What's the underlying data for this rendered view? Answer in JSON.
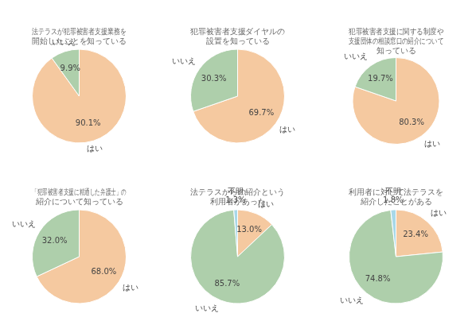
{
  "chart_data": [
    {
      "type": "pie",
      "title": "法テラスが犯罪被害者支援業務を\n開始したことを知っている",
      "categories": [
        "はい",
        "いいえ"
      ],
      "values": [
        90.1,
        9.9
      ],
      "value_labels": [
        "90.1%",
        "9.9%"
      ],
      "colors": [
        "#f5c9a0",
        "#aecfab"
      ],
      "data_labels": true
    },
    {
      "type": "pie",
      "title": "犯罪被害者支援ダイヤルの\n設置を知っている",
      "categories": [
        "はい",
        "いいえ"
      ],
      "values": [
        69.7,
        30.3
      ],
      "value_labels": [
        "69.7%",
        "30.3%"
      ],
      "colors": [
        "#f5c9a0",
        "#aecfab"
      ],
      "data_labels": true
    },
    {
      "type": "pie",
      "title": "犯罪被害者支援に関する制度や\n支援団体の相談窓口の紹介について\n知っている",
      "categories": [
        "はい",
        "いいえ"
      ],
      "values": [
        80.3,
        19.7
      ],
      "value_labels": [
        "80.3%",
        "19.7%"
      ],
      "colors": [
        "#f5c9a0",
        "#aecfab"
      ],
      "data_labels": true
    },
    {
      "type": "pie",
      "title": "「犯罪被害者支援に精通した弁護士」の\n紹介について知っている",
      "categories": [
        "はい",
        "いいえ"
      ],
      "values": [
        68.0,
        32.0
      ],
      "value_labels": [
        "68.0%",
        "32.0%"
      ],
      "colors": [
        "#f5c9a0",
        "#aecfab"
      ],
      "data_labels": true
    },
    {
      "type": "pie",
      "title": "法テラスからの紹介という\n利用者があった",
      "categories": [
        "はい",
        "いいえ",
        "不明"
      ],
      "values": [
        13.0,
        85.7,
        1.3
      ],
      "value_labels": [
        "13.0%",
        "85.7%",
        "1.3%"
      ],
      "colors": [
        "#f5c9a0",
        "#aecfab",
        "#a8d8e8"
      ],
      "data_labels": true
    },
    {
      "type": "pie",
      "title": "利用者に対して法テラスを\n紹介したことがある",
      "categories": [
        "はい",
        "いいえ",
        "不明"
      ],
      "values": [
        23.4,
        74.8,
        1.8
      ],
      "value_labels": [
        "23.4%",
        "74.8%",
        "1.8%"
      ],
      "colors": [
        "#f5c9a0",
        "#aecfab",
        "#a8d8e8"
      ],
      "data_labels": true
    }
  ]
}
